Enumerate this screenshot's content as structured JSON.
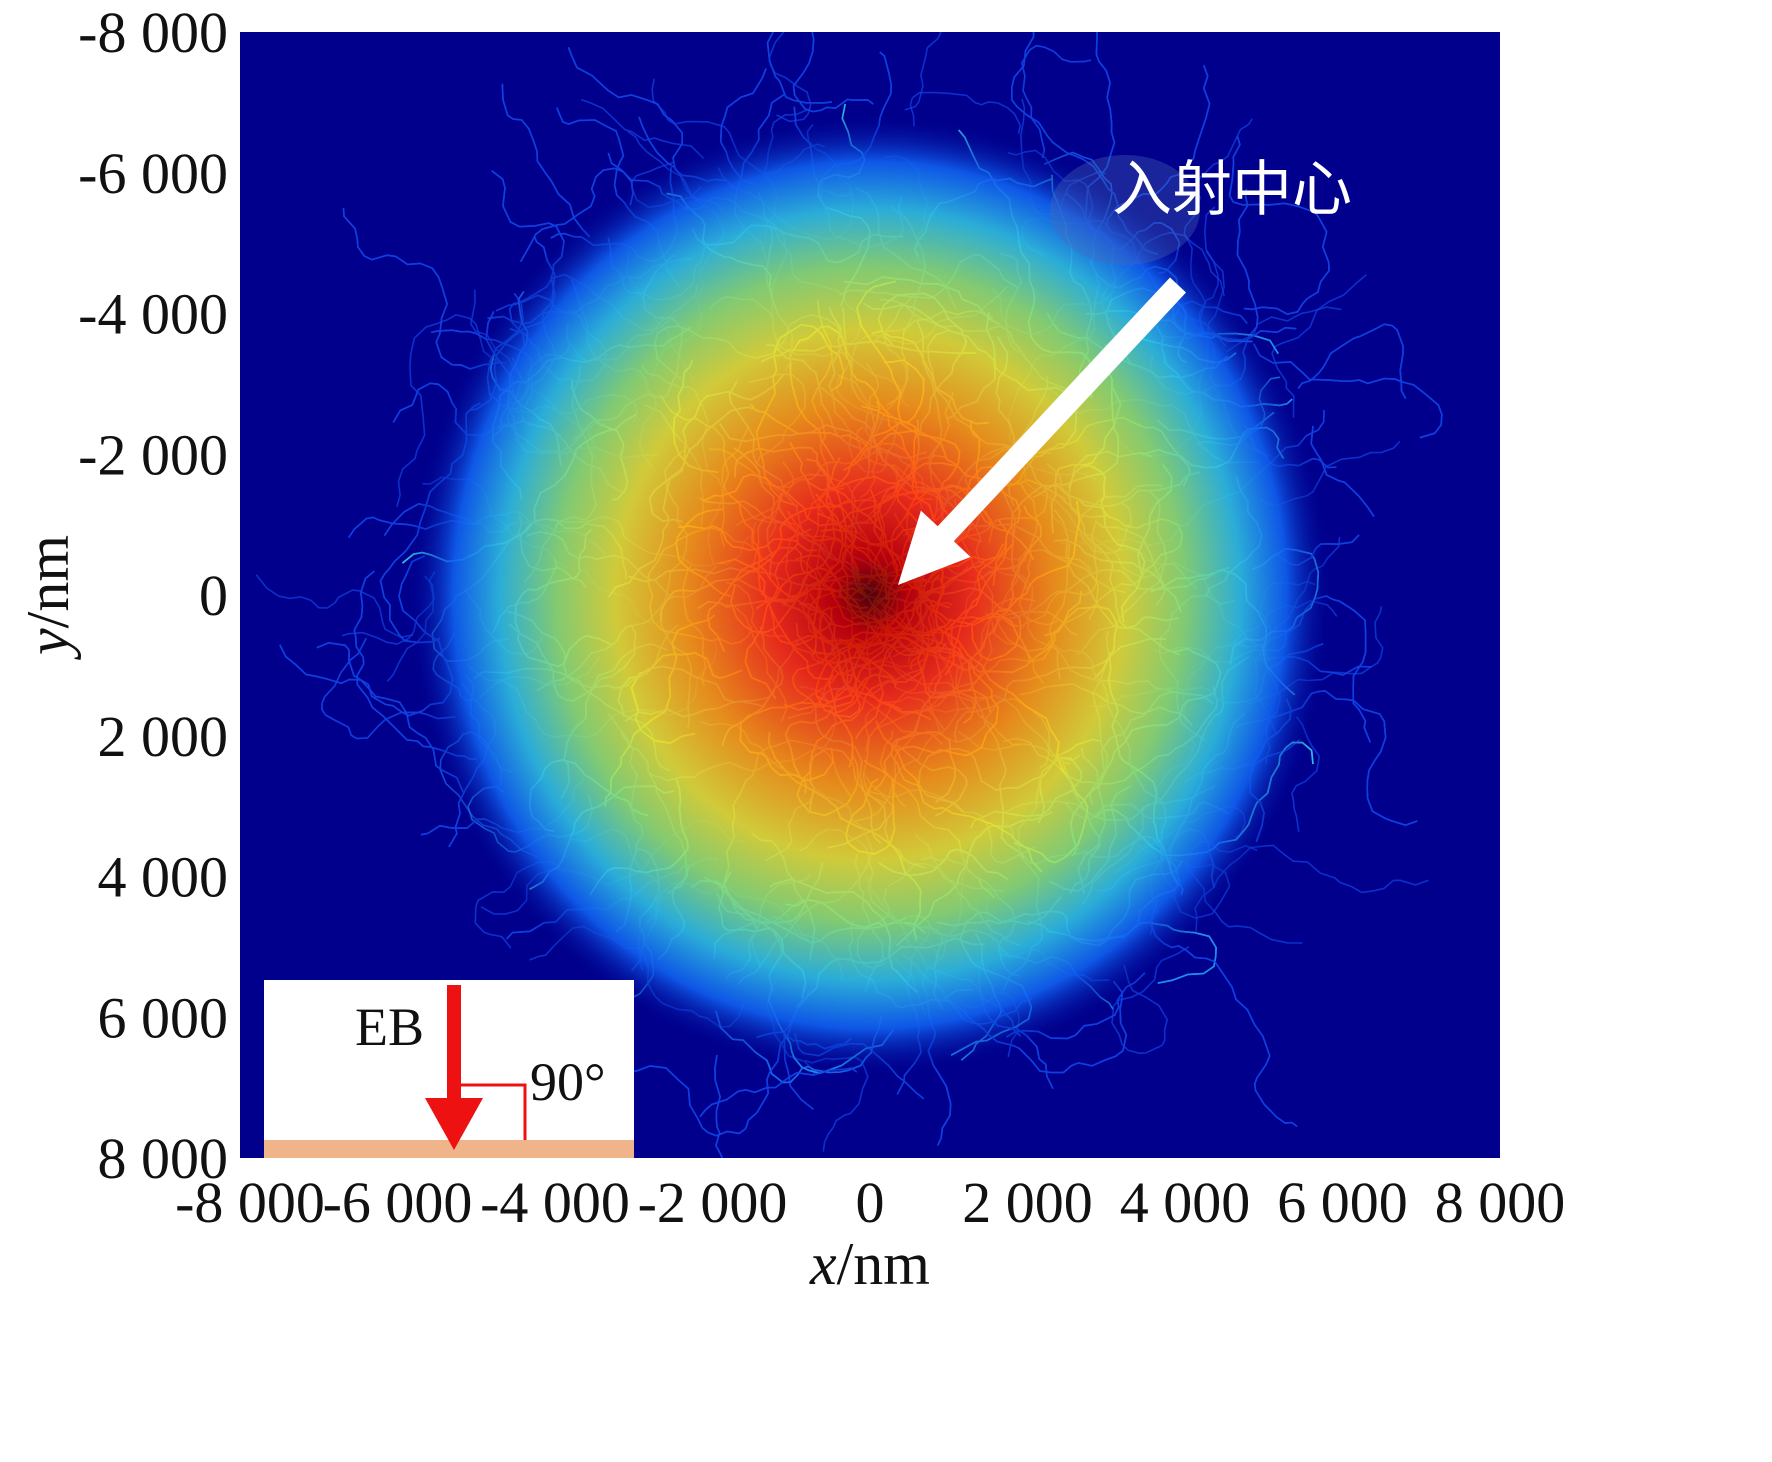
{
  "chart_data": {
    "type": "heatmap",
    "title": "",
    "xlabel": "x/nm",
    "ylabel": "y/nm",
    "xlim": [
      -8000,
      8000
    ],
    "ylim": [
      -8000,
      8000
    ],
    "y_inverted": true,
    "x_ticks": [
      -8000,
      -6000,
      -4000,
      -2000,
      0,
      2000,
      4000,
      6000,
      8000
    ],
    "y_ticks": [
      -8000,
      -6000,
      -4000,
      -2000,
      0,
      2000,
      4000,
      6000,
      8000
    ],
    "x_tick_labels": [
      "-8 000",
      "-6 000",
      "-4 000",
      "-2 000",
      "0",
      "2 000",
      "4 000",
      "6 000",
      "8 000"
    ],
    "y_tick_labels": [
      "-8 000",
      "-6 000",
      "-4 000",
      "-2 000",
      "0",
      "2 000",
      "4 000",
      "6 000",
      "8 000"
    ],
    "grid": false,
    "colormap": "jet",
    "background_color": "#00008c",
    "center": [
      0,
      0
    ],
    "extent_nm": 6000,
    "annotations": [
      {
        "text": "入射中心",
        "points_to": [
          0,
          0
        ],
        "color": "#ffffff"
      }
    ],
    "inset": {
      "beam_label": "EB",
      "angle_label": "90°",
      "beam_color": "#ee1111",
      "substrate_color": "#f0b48a"
    }
  }
}
